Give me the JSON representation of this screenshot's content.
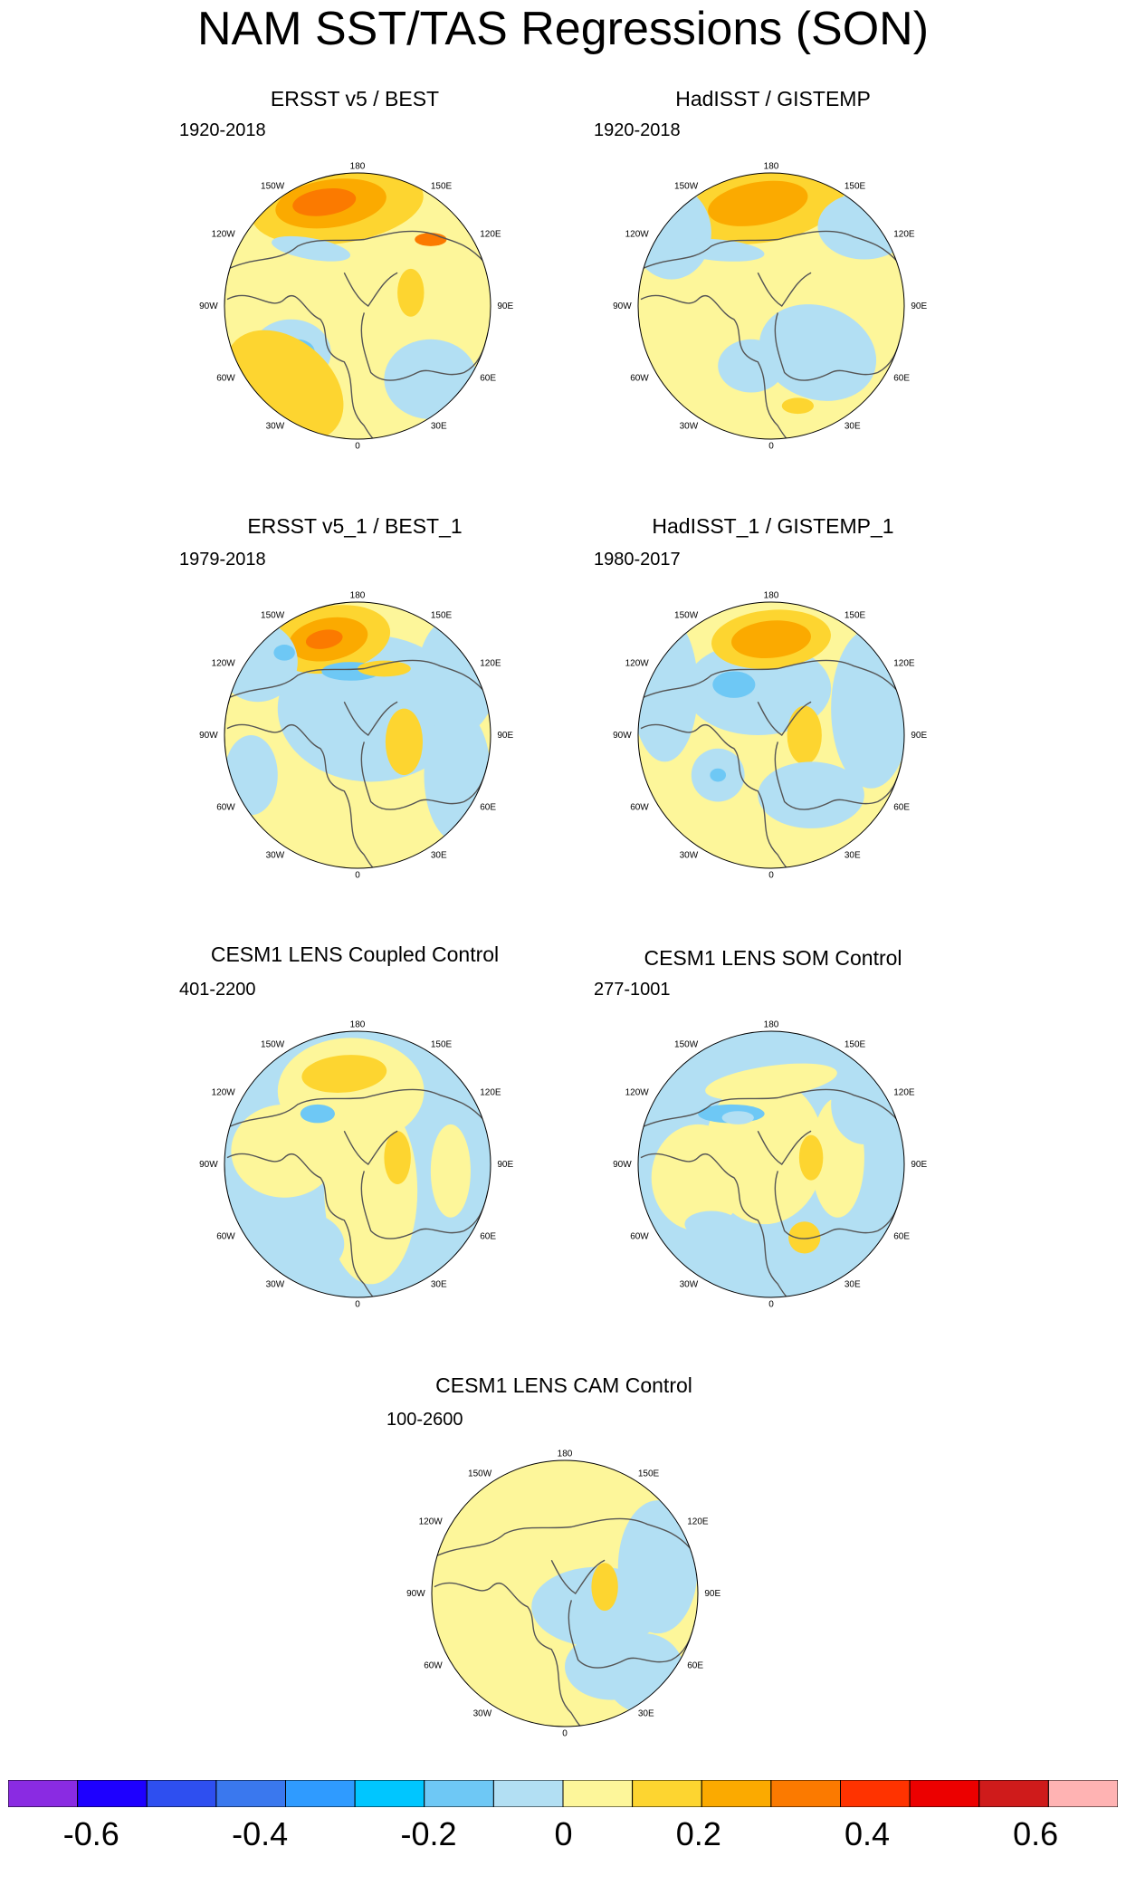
{
  "title": "NAM SST/TAS Regressions (SON)",
  "lon_labels": [
    "180",
    "150E",
    "120E",
    "90E",
    "60E",
    "30E",
    "0",
    "30W",
    "60W",
    "90W",
    "120W",
    "150W"
  ],
  "panels": [
    {
      "title": "ERSST v5 / BEST",
      "period": "1920-2018"
    },
    {
      "title": "HadISST / GISTEMP",
      "period": "1920-2018"
    },
    {
      "title": "ERSST v5_1 / BEST_1",
      "period": "1979-2018"
    },
    {
      "title": "HadISST_1 / GISTEMP_1",
      "period": "1980-2017"
    },
    {
      "title": "CESM1 LENS Coupled Control",
      "period": "401-2200"
    },
    {
      "title": "CESM1 LENS SOM Control",
      "period": "277-1001"
    },
    {
      "title": "CESM1 LENS CAM Control",
      "period": "100-2600"
    }
  ],
  "colorbar": {
    "colors": [
      "#8a2be2",
      "#1e00ff",
      "#2e4ff0",
      "#3a78ee",
      "#2f9bff",
      "#00c6ff",
      "#6ec8f5",
      "#b2dff3",
      "#fdf69a",
      "#fdd530",
      "#fbaa00",
      "#fb7a00",
      "#ff3300",
      "#ec0000",
      "#cf1b1b",
      "#ffb3b3"
    ],
    "labels": [
      {
        "text": "-0.6",
        "pos": 0.0749
      },
      {
        "text": "-0.4",
        "pos": 0.2269
      },
      {
        "text": "-0.2",
        "pos": 0.3789
      },
      {
        "text": "0",
        "pos": 0.5004
      },
      {
        "text": "0.2",
        "pos": 0.6222
      },
      {
        "text": "0.4",
        "pos": 0.7741
      },
      {
        "text": "0.6",
        "pos": 0.9259
      }
    ]
  }
}
